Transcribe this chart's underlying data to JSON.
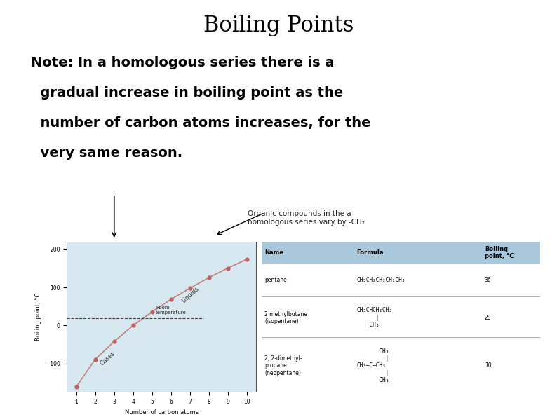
{
  "title": "Boiling Points",
  "title_fontsize": 22,
  "title_fontweight": "normal",
  "body_text_line1": "Note: In a homologous series there is a",
  "body_text_line2": "  gradual increase in boiling point as the",
  "body_text_line3": "  number of carbon atoms increases, for the",
  "body_text_line4": "  very same reason.",
  "body_fontsize": 14,
  "body_fontweight": "bold",
  "annotation_text": "Organic compounds in the a\nhomologous series vary by -CH₂",
  "annotation_fontsize": 7.5,
  "bg_color": "#ffffff",
  "graph_bg": "#d8e8f0",
  "table_bg": "#d8e8f0",
  "table_header_bg": "#aac8dc",
  "graph_x": [
    1,
    2,
    3,
    4,
    5,
    6,
    7,
    8,
    9,
    10
  ],
  "graph_y": [
    -161,
    -89,
    -42,
    0,
    36,
    69,
    98,
    126,
    151,
    174
  ],
  "curve_color": "#c08080",
  "point_color": "#c06060",
  "room_temp": 20,
  "graph_ylabel": "Boiling point, °C",
  "graph_xlabel": "Number of carbon atoms",
  "liquids_label": "Liquids",
  "gases_label": "Gases"
}
